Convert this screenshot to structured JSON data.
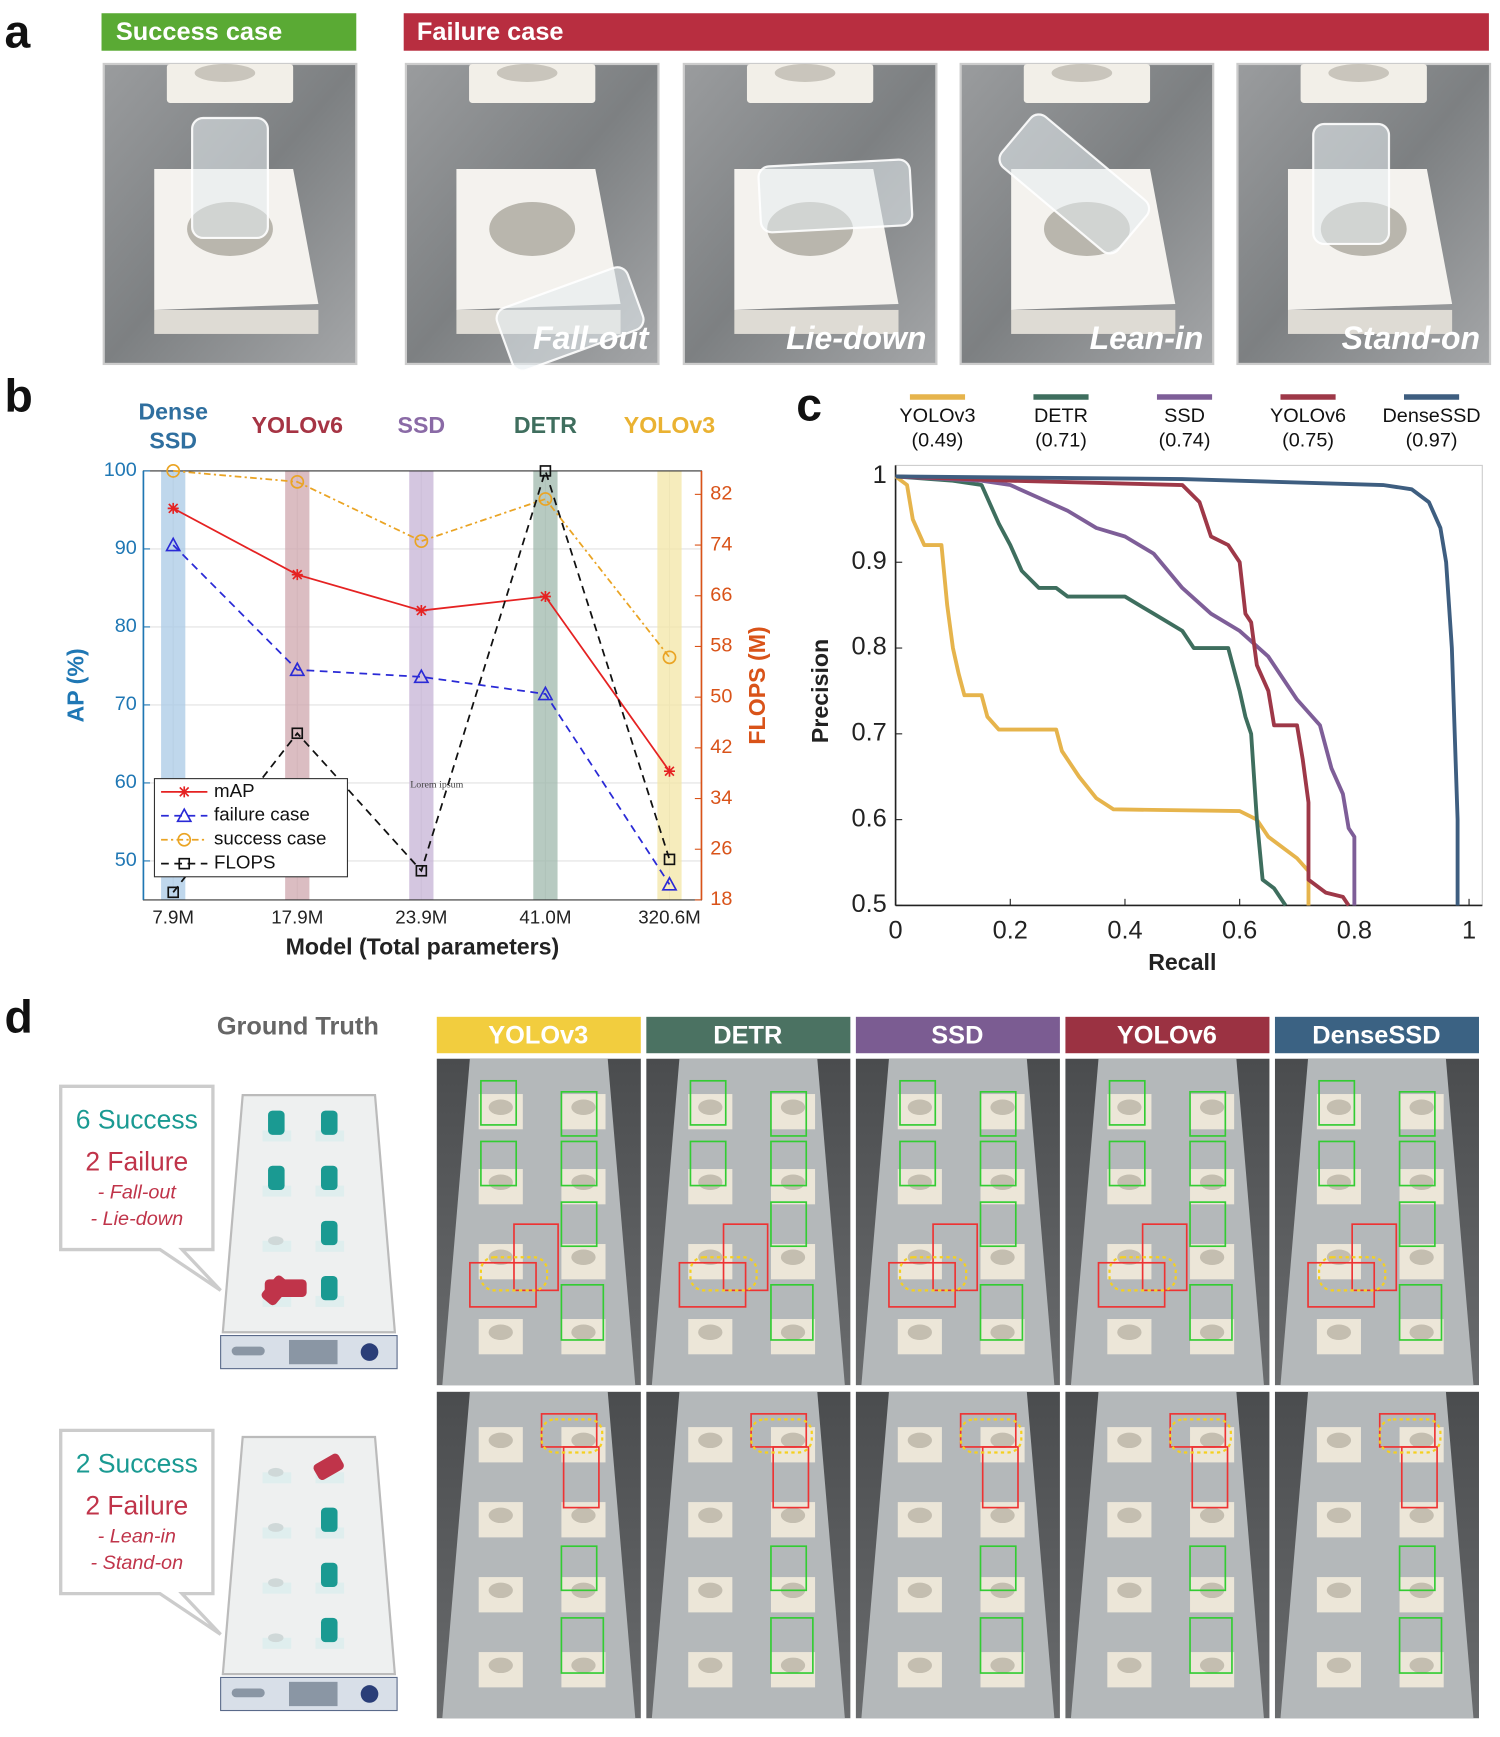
{
  "panel_labels": [
    "a",
    "b",
    "c",
    "d"
  ],
  "panel_a": {
    "success_header": "Success case",
    "success_color": "#5aaa34",
    "failure_header": "Failure case",
    "failure_color": "#b82e40",
    "captions": [
      "Fall-out",
      "Lie-down",
      "Lean-in",
      "Stand-on"
    ]
  },
  "chart_data": [
    {
      "type": "line",
      "categories": [
        "7.9M",
        "17.9M",
        "23.9M",
        "41.0M",
        "320.6M"
      ],
      "model_labels": [
        [
          "Dense",
          "SSD"
        ],
        [
          "YOLOv6"
        ],
        [
          "SSD"
        ],
        [
          "DETR"
        ],
        [
          "YOLOv3"
        ]
      ],
      "model_colors": [
        "#2f6f9f",
        "#a63444",
        "#8a6aa6",
        "#3f6e5e",
        "#eab232"
      ],
      "band_colors": [
        "#a9c9e6",
        "#cfa7ad",
        "#c6b3d6",
        "#9fb8ac",
        "#f3e6a6"
      ],
      "xlabel": "Model (Total parameters)",
      "ylabel": "AP (%)",
      "y2label": "FLOPS (M)",
      "ylim": [
        45,
        100
      ],
      "yticks": [
        50,
        60,
        70,
        80,
        90,
        100
      ],
      "y2lim": [
        18,
        85.7
      ],
      "y2ticks": [
        18,
        26,
        34,
        42,
        50,
        58,
        66,
        74,
        82
      ],
      "grid": true,
      "legend": "lower left",
      "annotation": "Lorem ipsum",
      "series": [
        {
          "name": "mAP",
          "color": "#e52222",
          "marker": "star",
          "dash": "solid",
          "values": [
            95.2,
            86.7,
            82.1,
            83.9,
            61.5
          ]
        },
        {
          "name": "failure case",
          "color": "#2a2ad6",
          "marker": "triangle",
          "dash": "dashed",
          "values": [
            90.5,
            74.5,
            73.6,
            71.4,
            47.0
          ]
        },
        {
          "name": "success case",
          "color": "#eaa424",
          "marker": "circle",
          "dash": "dashdot",
          "values": [
            100,
            98.6,
            91.0,
            96.4,
            76.1
          ]
        },
        {
          "name": "FLOPS",
          "color": "#111111",
          "marker": "square",
          "dash": "dashed",
          "axis": "y2",
          "values": [
            19.2,
            44.3,
            22.6,
            85.7,
            24.4
          ]
        }
      ]
    },
    {
      "type": "line",
      "xlabel": "Recall",
      "ylabel": "Precision",
      "xlim": [
        0,
        1
      ],
      "xticks": [
        0,
        0.2,
        0.4,
        0.6,
        0.8,
        1
      ],
      "ylim": [
        0.5,
        1
      ],
      "yticks": [
        0.5,
        0.6,
        0.7,
        0.8,
        0.9,
        1
      ],
      "legend": "top",
      "series": [
        {
          "name": "YOLOv3",
          "ap": 0.49,
          "ap_label": "(0.49)",
          "color": "#e6b44c",
          "x": [
            0,
            0.02,
            0.03,
            0.05,
            0.08,
            0.09,
            0.1,
            0.11,
            0.12,
            0.15,
            0.16,
            0.18,
            0.28,
            0.29,
            0.32,
            0.35,
            0.38,
            0.6,
            0.63,
            0.65,
            0.7,
            0.72,
            0.72
          ],
          "y": [
            1,
            0.99,
            0.95,
            0.92,
            0.92,
            0.85,
            0.8,
            0.77,
            0.745,
            0.745,
            0.72,
            0.705,
            0.705,
            0.68,
            0.65,
            0.625,
            0.612,
            0.61,
            0.6,
            0.58,
            0.555,
            0.54,
            0.5
          ]
        },
        {
          "name": "DETR",
          "ap": 0.71,
          "ap_label": "(0.71)",
          "color": "#3e6e5e",
          "x": [
            0,
            0.1,
            0.15,
            0.17,
            0.18,
            0.2,
            0.22,
            0.25,
            0.28,
            0.3,
            0.4,
            0.45,
            0.5,
            0.52,
            0.58,
            0.6,
            0.61,
            0.62,
            0.63,
            0.64,
            0.66,
            0.68
          ],
          "y": [
            1,
            0.995,
            0.99,
            0.96,
            0.945,
            0.92,
            0.89,
            0.87,
            0.87,
            0.86,
            0.86,
            0.84,
            0.82,
            0.8,
            0.8,
            0.75,
            0.72,
            0.7,
            0.6,
            0.53,
            0.52,
            0.5
          ]
        },
        {
          "name": "SSD",
          "ap": 0.74,
          "ap_label": "(0.74)",
          "color": "#7e5e98",
          "x": [
            0,
            0.15,
            0.2,
            0.25,
            0.3,
            0.35,
            0.4,
            0.45,
            0.5,
            0.55,
            0.6,
            0.65,
            0.7,
            0.74,
            0.76,
            0.78,
            0.79,
            0.8,
            0.8
          ],
          "y": [
            1,
            0.995,
            0.99,
            0.975,
            0.96,
            0.94,
            0.93,
            0.91,
            0.87,
            0.84,
            0.82,
            0.79,
            0.74,
            0.71,
            0.66,
            0.63,
            0.59,
            0.58,
            0.5
          ]
        },
        {
          "name": "YOLOv6",
          "ap": 0.75,
          "ap_label": "(0.75)",
          "color": "#9e3848",
          "x": [
            0,
            0.2,
            0.5,
            0.53,
            0.55,
            0.58,
            0.6,
            0.61,
            0.62,
            0.63,
            0.65,
            0.66,
            0.7,
            0.71,
            0.72,
            0.72,
            0.75,
            0.78,
            0.79
          ],
          "y": [
            1,
            0.995,
            0.99,
            0.97,
            0.93,
            0.92,
            0.9,
            0.84,
            0.83,
            0.78,
            0.75,
            0.71,
            0.71,
            0.67,
            0.62,
            0.53,
            0.515,
            0.51,
            0.5
          ]
        },
        {
          "name": "DenseSSD",
          "ap": 0.97,
          "ap_label": "(0.97)",
          "color": "#3e5e80",
          "x": [
            0,
            0.5,
            0.85,
            0.9,
            0.93,
            0.95,
            0.96,
            0.97,
            0.975,
            0.98,
            0.98
          ],
          "y": [
            1,
            0.997,
            0.99,
            0.985,
            0.97,
            0.94,
            0.9,
            0.8,
            0.7,
            0.6,
            0.5
          ]
        }
      ]
    }
  ],
  "panel_d": {
    "title": "Ground Truth",
    "scenes": [
      {
        "success": "6 Success",
        "failure": "2 Failure",
        "modes": [
          "- Fall-out",
          "- Lie-down"
        ]
      },
      {
        "success": "2 Success",
        "failure": "2 Failure",
        "modes": [
          "- Lean-in",
          "- Stand-on"
        ]
      }
    ],
    "models": [
      {
        "name": "YOLOv3",
        "color": "#f2cd3e"
      },
      {
        "name": "DETR",
        "color": "#4b7262"
      },
      {
        "name": "SSD",
        "color": "#7b5c92"
      },
      {
        "name": "YOLOv6",
        "color": "#9b3242"
      },
      {
        "name": "DenseSSD",
        "color": "#3b6283"
      }
    ]
  }
}
